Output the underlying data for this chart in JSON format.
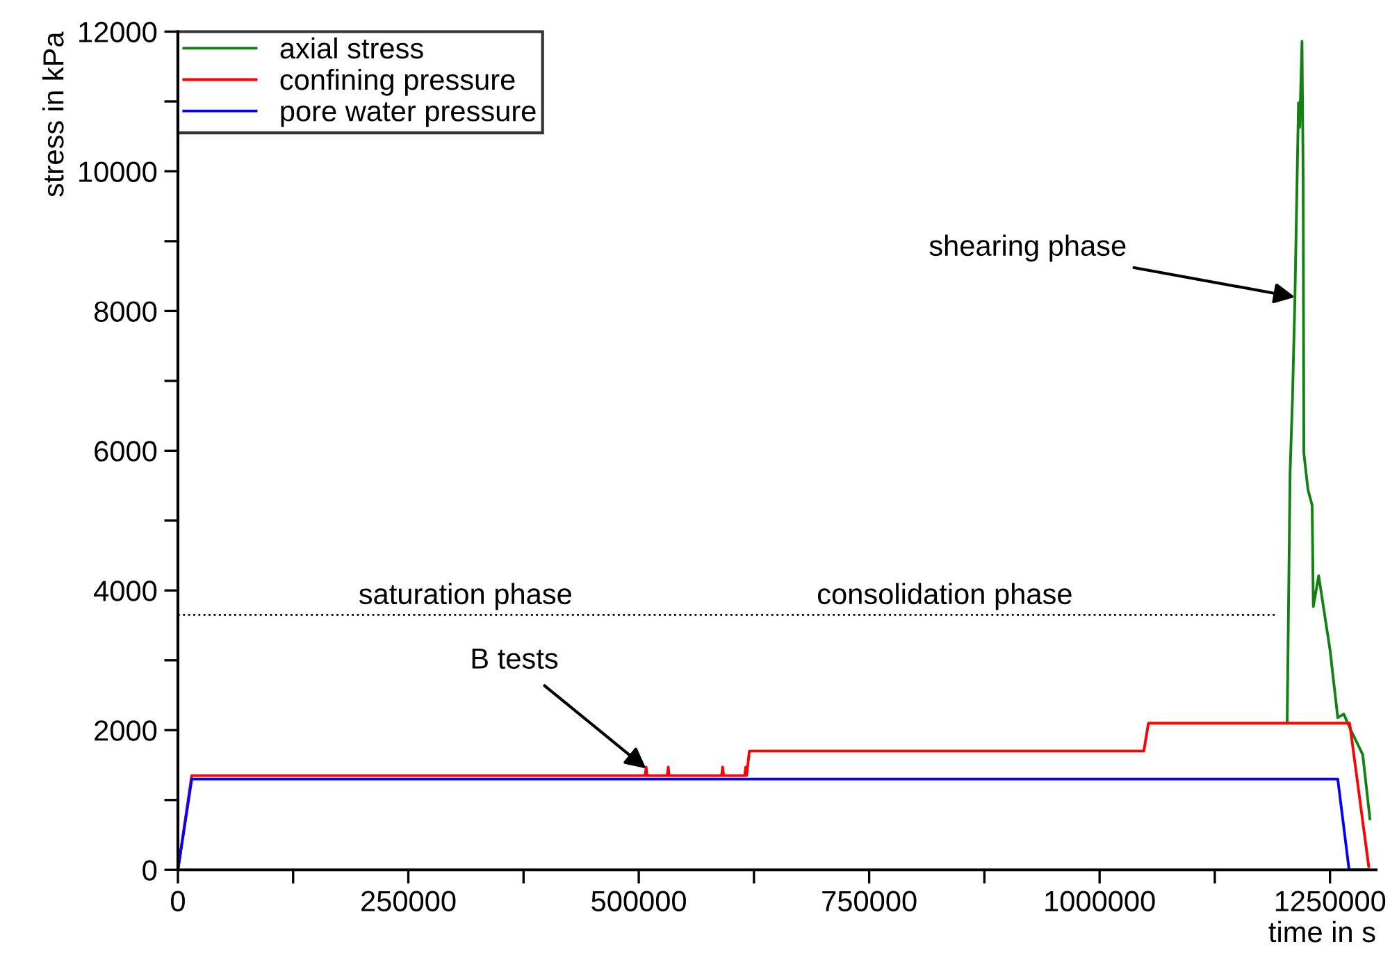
{
  "chart_data": {
    "type": "line",
    "xlabel": "time in s",
    "ylabel": "stress in kPa",
    "xlim": [
      0,
      1300000
    ],
    "ylim": [
      0,
      12000
    ],
    "xticks": [
      0,
      {
        "value": 125000,
        "label": null
      },
      250000,
      {
        "value": 375000,
        "label": null
      },
      500000,
      {
        "value": 625000,
        "label": null
      },
      750000,
      {
        "value": 875000,
        "label": null
      },
      1000000,
      {
        "value": 1125000,
        "label": null
      },
      1250000
    ],
    "yticks": [
      0,
      {
        "value": 1000,
        "label": null
      },
      2000,
      {
        "value": 3000,
        "label": null
      },
      4000,
      {
        "value": 5000,
        "label": null
      },
      6000,
      {
        "value": 7000,
        "label": null
      },
      8000,
      {
        "value": 9000,
        "label": null
      },
      10000,
      {
        "value": 11000,
        "label": null
      },
      12000
    ],
    "grid": false,
    "legend": "top left",
    "marker": "none",
    "series": [
      {
        "name": "axial stress",
        "color": "#138013",
        "x": [
          1203500,
          1206700,
          1209300,
          1211900,
          1215800,
          1217100,
          1219600,
          1220900,
          1221600,
          1226100,
          1230600,
          1231900,
          1237700,
          1250000,
          1258400,
          1264900,
          1272600,
          1285500,
          1293300
        ],
        "values": [
          2100,
          5700,
          6760,
          8170,
          10980,
          10630,
          11860,
          9840,
          5970,
          5440,
          5220,
          3770,
          4210,
          3150,
          2180,
          2230,
          2000,
          1650,
          730
        ]
      },
      {
        "name": "confining pressure",
        "color": "#ff0000",
        "x": [
          0,
          15000,
          507000,
          508000,
          509000,
          531000,
          532000,
          533000,
          590000,
          591000,
          592000,
          615000,
          616000,
          617000,
          620000,
          1048000,
          1053000,
          1271300,
          1292000
        ],
        "values": [
          0,
          1350,
          1350,
          1470,
          1350,
          1350,
          1470,
          1350,
          1350,
          1470,
          1350,
          1350,
          1470,
          1350,
          1700,
          1700,
          2100,
          2100,
          50
        ]
      },
      {
        "name": "pore water pressure",
        "color": "#0000ff",
        "x": [
          0,
          15000,
          1258400,
          1270700,
          1292000
        ],
        "values": [
          0,
          1300,
          1300,
          0,
          0
        ]
      },
      {
        "color": "#000000",
        "line_style": "dotted",
        "x": [
          0,
          1190000
        ],
        "values": [
          3650,
          3650
        ]
      }
    ],
    "annotations": [
      {
        "text": "shearing phase",
        "x": 1212000,
        "y": 8200
      },
      {
        "text": "B tests",
        "x": 508000,
        "y": 1450
      },
      "saturation phase",
      "consolidation phase"
    ]
  }
}
